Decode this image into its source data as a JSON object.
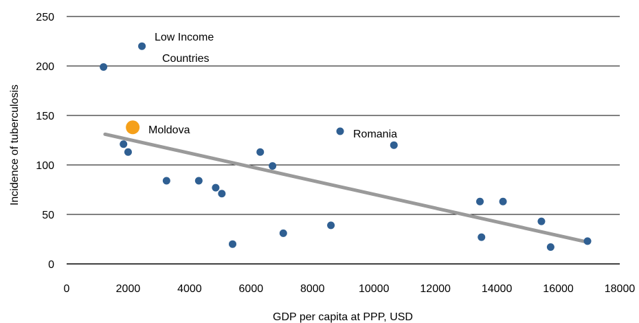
{
  "chart_data": {
    "type": "scatter",
    "xlabel": "GDP per capita at PPP, USD",
    "ylabel": "Incidence of tuberculosis",
    "xlim": [
      0,
      18000
    ],
    "ylim": [
      0,
      250
    ],
    "x_ticks": [
      0,
      2000,
      4000,
      6000,
      8000,
      10000,
      12000,
      14000,
      16000,
      18000
    ],
    "y_ticks": [
      0,
      50,
      100,
      150,
      200,
      250
    ],
    "grid": "horizontal",
    "points": [
      {
        "x": 1200,
        "y": 199
      },
      {
        "x": 2450,
        "y": 220
      },
      {
        "x": 1850,
        "y": 121
      },
      {
        "x": 2000,
        "y": 113
      },
      {
        "x": 3250,
        "y": 84
      },
      {
        "x": 4300,
        "y": 84
      },
      {
        "x": 4850,
        "y": 77
      },
      {
        "x": 5050,
        "y": 71
      },
      {
        "x": 5400,
        "y": 20
      },
      {
        "x": 6300,
        "y": 113
      },
      {
        "x": 6700,
        "y": 99
      },
      {
        "x": 7050,
        "y": 31
      },
      {
        "x": 8600,
        "y": 39
      },
      {
        "x": 8900,
        "y": 134
      },
      {
        "x": 10650,
        "y": 120
      },
      {
        "x": 13450,
        "y": 63
      },
      {
        "x": 13500,
        "y": 27
      },
      {
        "x": 14200,
        "y": 63
      },
      {
        "x": 15450,
        "y": 43
      },
      {
        "x": 15750,
        "y": 17
      },
      {
        "x": 16950,
        "y": 23
      }
    ],
    "highlight": {
      "x": 2150,
      "y": 138
    },
    "trendline": {
      "x": [
        1250,
        16950
      ],
      "y": [
        131,
        22
      ]
    },
    "annotations": {
      "low_income_line1": "Low Income",
      "low_income_line2": "Countries",
      "moldova": "Moldova",
      "romania": "Romania"
    },
    "colors": {
      "points": "#2f5f92",
      "highlight": "#f5a01a",
      "trendline": "#9a9a9a",
      "grid": "#000000"
    }
  }
}
